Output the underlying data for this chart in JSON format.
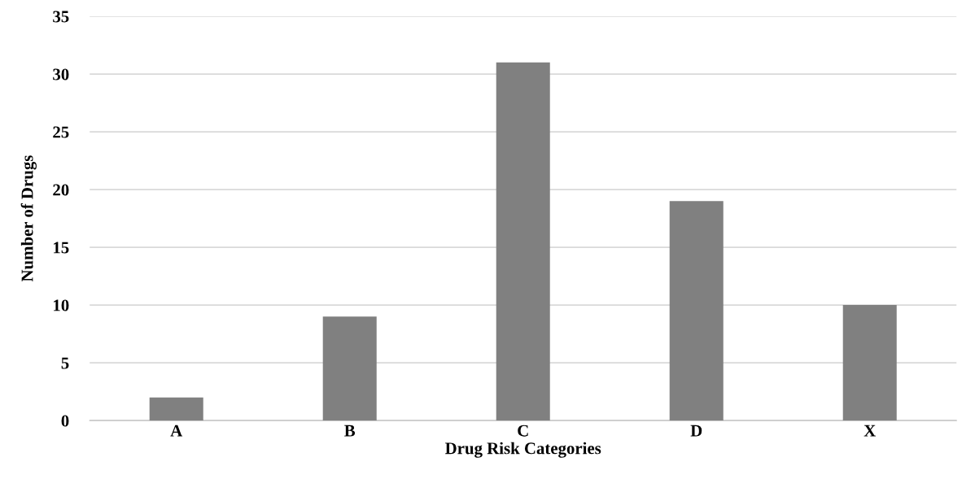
{
  "chart_data": {
    "type": "bar",
    "xlabel": "Drug Risk Categories",
    "ylabel": "Number of Drugs",
    "categories": [
      "A",
      "B",
      "C",
      "D",
      "X"
    ],
    "values": [
      2,
      9,
      31,
      19,
      10
    ],
    "color": "#808080",
    "ylim": [
      0,
      35
    ],
    "yticks": [
      0,
      5,
      10,
      15,
      20,
      25,
      30,
      35
    ],
    "grid": "y",
    "legend": false
  }
}
